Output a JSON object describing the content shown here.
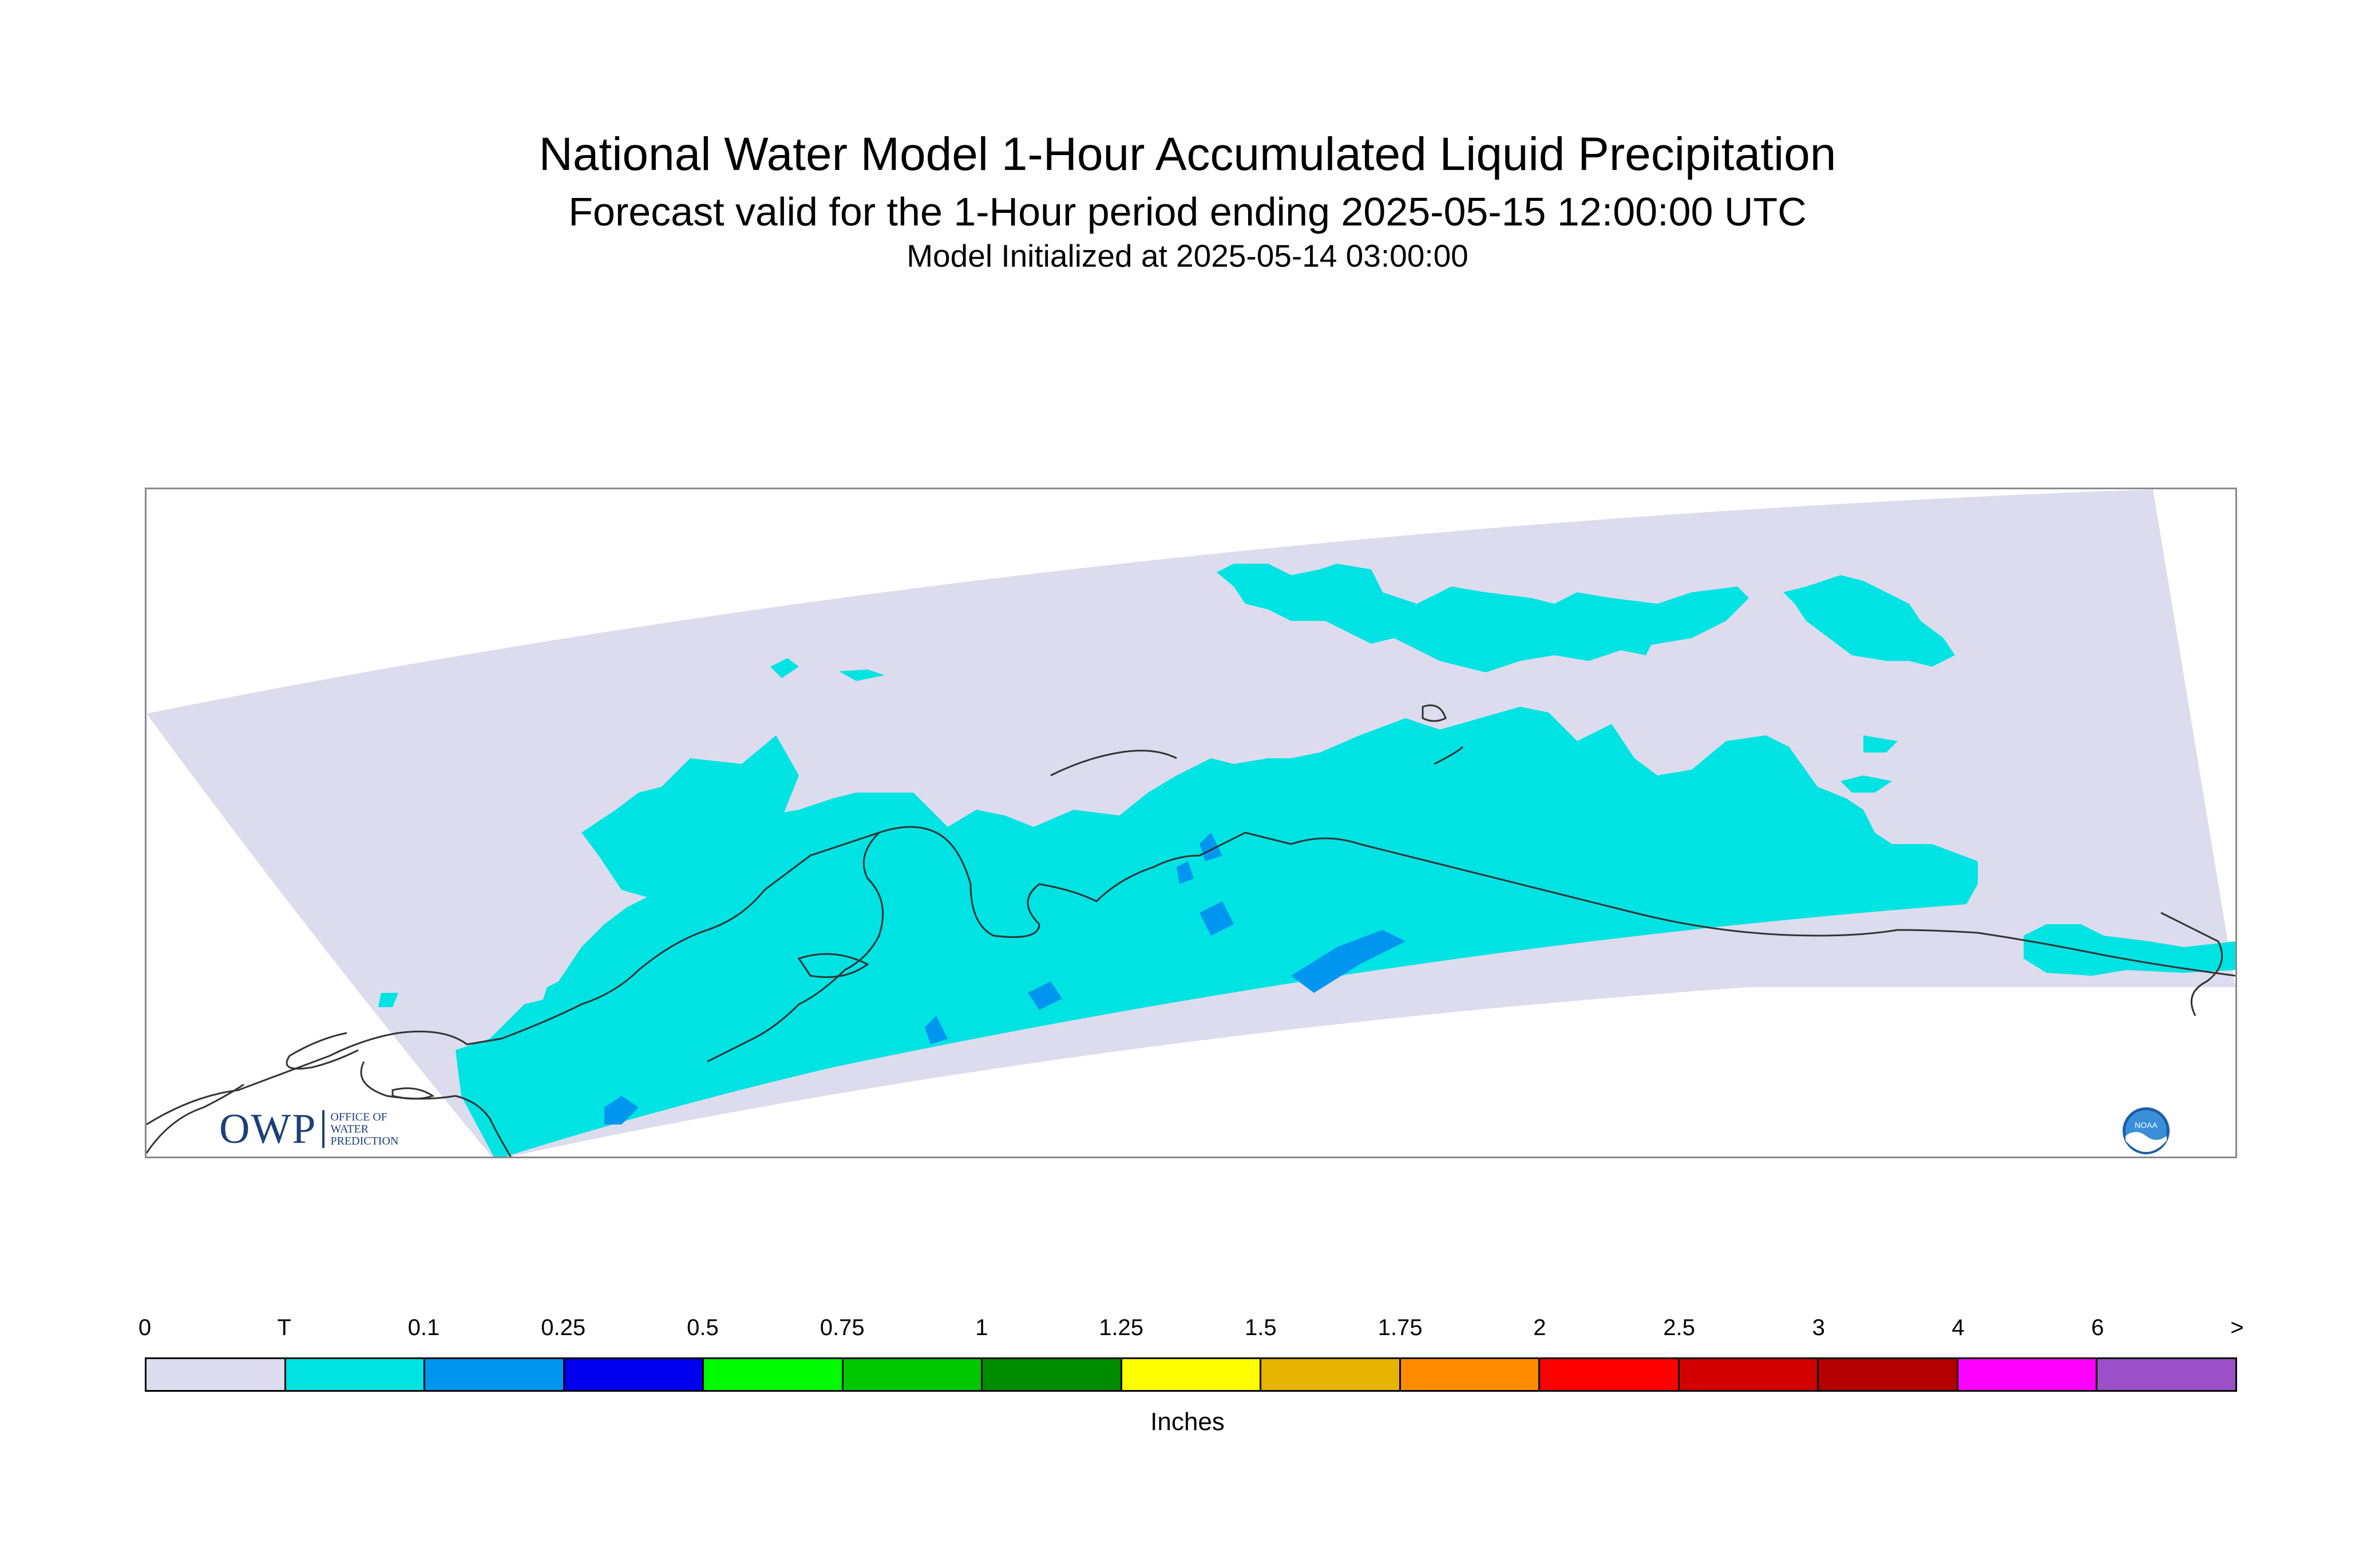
{
  "title": "National Water Model 1-Hour Accumulated Liquid Precipitation",
  "subtitle": "Forecast valid for the 1-Hour period ending 2025-05-15 12:00:00 UTC",
  "init_line": "Model Initialized at 2025-05-14 03:00:00",
  "logos": {
    "owp_text": "OWP",
    "owp_sub_1": "OFFICE OF",
    "owp_sub_2": "WATER",
    "owp_sub_3": "PREDICTION",
    "noaa_text": "NOAA"
  },
  "colors": {
    "domain_fill": "#dcdcee",
    "trace": "#00e3e3",
    "light_blue": "#0096f0",
    "coastline": "#333333"
  },
  "legend": {
    "units": "Inches",
    "labels": [
      "0",
      "T",
      "0.1",
      "0.25",
      "0.5",
      "0.75",
      "1",
      "1.25",
      "1.5",
      "1.75",
      "2",
      "2.5",
      "3",
      "4",
      "6",
      ">"
    ],
    "colors": [
      "#dcdcee",
      "#00e3e3",
      "#0096f0",
      "#0000f0",
      "#00fa00",
      "#00c800",
      "#008c00",
      "#ffff00",
      "#e6b400",
      "#ff8c00",
      "#ff0000",
      "#d20000",
      "#b40000",
      "#ff00ff",
      "#9b50c8"
    ]
  }
}
